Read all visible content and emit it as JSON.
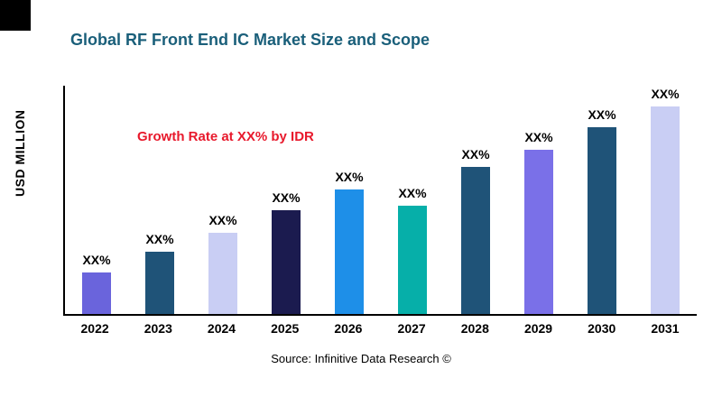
{
  "header": {
    "title": "Global RF Front End IC Market Size and Scope",
    "title_color": "#1A5F7A"
  },
  "annotation": {
    "growth_note": "Growth Rate at XX% by IDR",
    "color": "#E8192C"
  },
  "axes": {
    "y_label": "USD MILLION"
  },
  "source": {
    "text": "Source: Infinitive Data Research ©"
  },
  "chart_data": {
    "type": "bar",
    "title": "Global RF Front End IC Market Size and Scope",
    "xlabel": "",
    "ylabel": "USD MILLION",
    "categories": [
      "2022",
      "2023",
      "2024",
      "2025",
      "2026",
      "2027",
      "2028",
      "2029",
      "2030",
      "2031"
    ],
    "values": [
      20,
      30,
      39,
      50,
      60,
      52,
      71,
      79,
      90,
      100
    ],
    "bar_labels": [
      "XX%",
      "XX%",
      "XX%",
      "XX%",
      "XX%",
      "XX%",
      "XX%",
      "XX%",
      "XX%",
      "XX%"
    ],
    "colors": [
      "#6A64DC",
      "#1F5378",
      "#C9CEF4",
      "#1B1B4F",
      "#1E8FE8",
      "#06AFA9",
      "#1F5378",
      "#7A70E8",
      "#1F5378",
      "#C9CEF4"
    ],
    "ylim": [
      0,
      100
    ],
    "grid": false,
    "legend": false,
    "annotations": [
      "Growth Rate at XX% by IDR"
    ]
  }
}
